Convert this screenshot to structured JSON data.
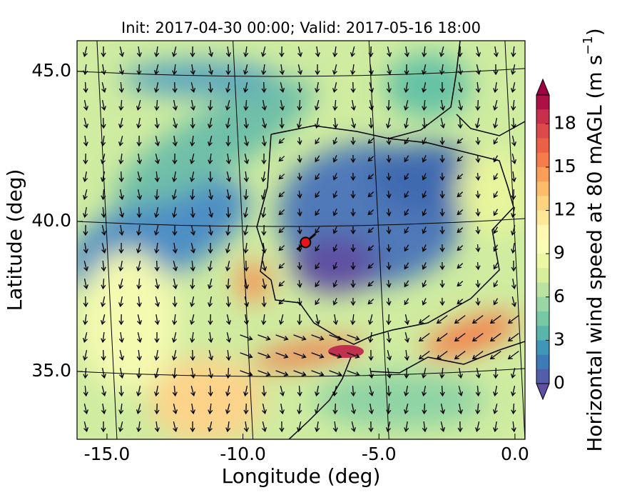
{
  "map": {
    "title": "Init: 2017-04-30 00:00; Valid: 2017-05-16 18:00",
    "x_axis": {
      "label": "Longitude (deg)",
      "lim": [
        -16.1,
        0.37
      ],
      "ticks": [
        {
          "value": -15,
          "label": "-15.0"
        },
        {
          "value": -10,
          "label": "-10.0"
        },
        {
          "value": -5,
          "label": "-5.0"
        },
        {
          "value": 0,
          "label": "0.0"
        }
      ]
    },
    "y_axis": {
      "label": "Latitude (deg)",
      "lim": [
        32.74,
        46.02
      ],
      "ticks": [
        {
          "value": 35,
          "label": "35.0"
        },
        {
          "value": 40,
          "label": "40.0"
        },
        {
          "value": 45,
          "label": "45.0"
        }
      ]
    },
    "colorbar": {
      "label": "Horizontal wind speed at 80 mAGL (m s",
      "label_exponent": "−1",
      "label_end": ")",
      "lim": [
        0,
        20
      ],
      "ticks": [
        0,
        3,
        6,
        9,
        12,
        15,
        18
      ],
      "colors": [
        "#5e4fa2",
        "#3288bd",
        "#66c2a5",
        "#abdda4",
        "#e6f598",
        "#ffffbf",
        "#fee08b",
        "#fdae61",
        "#f46d43",
        "#d53e4f",
        "#9e0142"
      ]
    },
    "site": {
      "lon": -7.7,
      "lat": 39.3,
      "color": "#e8141c"
    }
  }
}
